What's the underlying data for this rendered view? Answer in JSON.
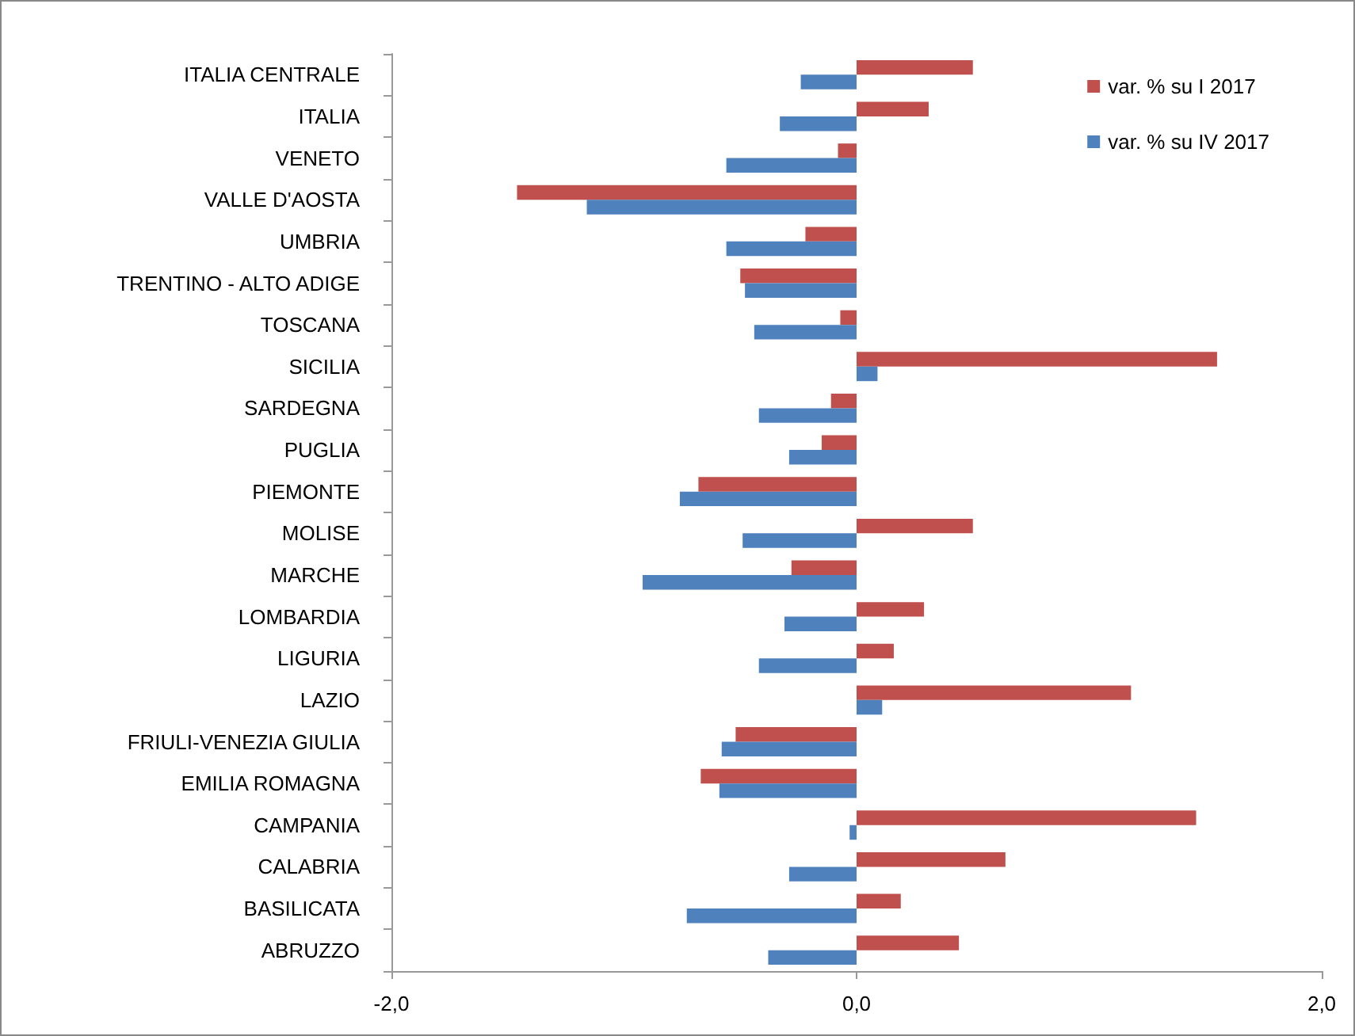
{
  "chart_data": {
    "type": "bar",
    "orientation": "horizontal",
    "categories": [
      "ITALIA CENTRALE",
      "ITALIA",
      "VENETO",
      "VALLE D'AOSTA",
      "UMBRIA",
      "TRENTINO - ALTO ADIGE",
      "TOSCANA",
      "SICILIA",
      "SARDEGNA",
      "PUGLIA",
      "PIEMONTE",
      "MOLISE",
      "MARCHE",
      "LOMBARDIA",
      "LIGURIA",
      "LAZIO",
      "FRIULI-VENEZIA GIULIA",
      "EMILIA ROMAGNA",
      "CAMPANIA",
      "CALABRIA",
      "BASILICATA",
      "ABRUZZO"
    ],
    "series": [
      {
        "name": "var. % su I 2017",
        "color": "#c0504d",
        "values": [
          0.5,
          0.31,
          -0.08,
          -1.46,
          -0.22,
          -0.5,
          -0.07,
          1.55,
          -0.11,
          -0.15,
          -0.68,
          0.5,
          -0.28,
          0.29,
          0.16,
          1.18,
          -0.52,
          -0.67,
          1.46,
          0.64,
          0.19,
          0.44
        ]
      },
      {
        "name": "var. % su IV 2017",
        "color": "#4f81bd",
        "values": [
          -0.24,
          -0.33,
          -0.56,
          -1.16,
          -0.56,
          -0.48,
          -0.44,
          0.09,
          -0.42,
          -0.29,
          -0.76,
          -0.49,
          -0.92,
          -0.31,
          -0.42,
          0.11,
          -0.58,
          -0.59,
          -0.03,
          -0.29,
          -0.73,
          -0.38
        ]
      }
    ],
    "xlim": [
      -2,
      2
    ],
    "xticks": [
      {
        "value": -2,
        "label": "-2,0"
      },
      {
        "value": 0,
        "label": "0,0"
      },
      {
        "value": 2,
        "label": "2,0"
      }
    ],
    "grid": false,
    "legend": "top right"
  }
}
